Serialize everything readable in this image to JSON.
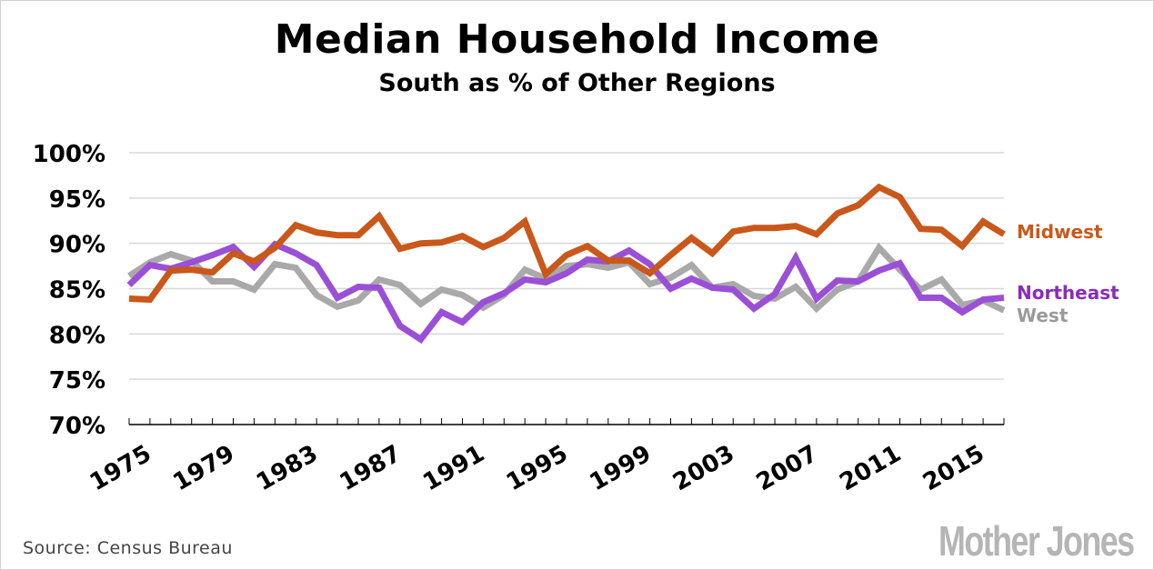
{
  "chart_data": {
    "type": "line",
    "title": "Median Household Income",
    "subtitle": "South as % of Other Regions",
    "xlabel": "",
    "ylabel": "",
    "x": [
      1975,
      1976,
      1977,
      1978,
      1979,
      1980,
      1981,
      1982,
      1983,
      1984,
      1985,
      1986,
      1987,
      1988,
      1989,
      1990,
      1991,
      1992,
      1993,
      1994,
      1995,
      1996,
      1997,
      1998,
      1999,
      2000,
      2001,
      2002,
      2003,
      2004,
      2005,
      2006,
      2007,
      2008,
      2009,
      2010,
      2011,
      2012,
      2013,
      2014,
      2015,
      2016,
      2017
    ],
    "xticks": [
      "1975",
      "1979",
      "1983",
      "1987",
      "1991",
      "1995",
      "1999",
      "2003",
      "2007",
      "2011",
      "2015"
    ],
    "ylim": [
      70,
      100
    ],
    "yticks": [
      "70%",
      "75%",
      "80%",
      "85%",
      "90%",
      "95%",
      "100%"
    ],
    "grid": true,
    "series": [
      {
        "name": "Midwest",
        "color": "#c9581a",
        "values": [
          83.9,
          83.8,
          87.0,
          87.1,
          86.8,
          88.9,
          88.0,
          89.5,
          92.0,
          91.2,
          90.9,
          90.9,
          93.0,
          89.4,
          90.0,
          90.1,
          90.8,
          89.6,
          90.6,
          92.4,
          86.6,
          88.7,
          89.7,
          88.1,
          88.1,
          86.7,
          88.7,
          90.6,
          88.9,
          91.3,
          91.7,
          91.7,
          91.9,
          91.0,
          93.3,
          94.2,
          96.2,
          95.1,
          91.6,
          91.5,
          89.7,
          92.4,
          91.0
        ]
      },
      {
        "name": "Northeast",
        "color": "#9b4fd6",
        "values": [
          85.4,
          87.6,
          87.2,
          87.9,
          88.7,
          89.6,
          87.4,
          89.9,
          88.9,
          87.6,
          84.0,
          85.2,
          85.1,
          80.9,
          79.4,
          82.4,
          81.3,
          83.5,
          84.5,
          86.0,
          85.7,
          86.7,
          88.2,
          88.0,
          89.2,
          87.7,
          85.0,
          86.1,
          85.1,
          84.9,
          82.8,
          84.4,
          88.4,
          83.9,
          85.9,
          85.8,
          87.0,
          87.8,
          84.0,
          84.0,
          82.4,
          83.8,
          84.0
        ]
      },
      {
        "name": "West",
        "color": "#a9a9a9",
        "values": [
          86.4,
          87.9,
          88.8,
          88.1,
          85.8,
          85.8,
          84.9,
          87.7,
          87.3,
          84.3,
          83.0,
          83.7,
          86.0,
          85.4,
          83.3,
          84.9,
          84.3,
          82.9,
          84.3,
          87.1,
          86.1,
          87.5,
          87.7,
          87.3,
          87.9,
          85.5,
          86.2,
          87.6,
          85.1,
          85.5,
          84.2,
          83.9,
          85.2,
          82.8,
          84.9,
          85.8,
          89.5,
          87.1,
          84.9,
          86.0,
          83.2,
          83.7,
          82.6
        ]
      }
    ],
    "legend_labels": {
      "midwest": "Midwest",
      "northeast": "Northeast",
      "west": "West"
    }
  },
  "footer": {
    "source": "Source: Census Bureau",
    "logo_text": "Mother Jones"
  },
  "colors": {
    "text": "#000000",
    "grid": "#d8d8d8",
    "axis": "#000000"
  }
}
